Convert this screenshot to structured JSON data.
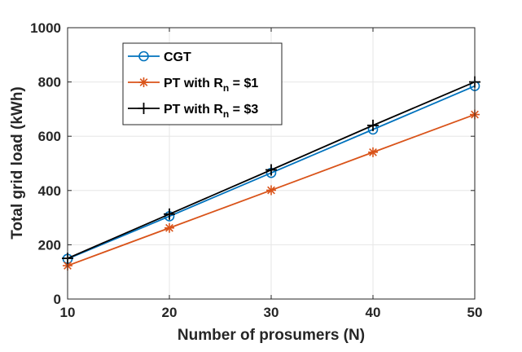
{
  "chart_data": {
    "type": "line",
    "title": "",
    "xlabel": "Number of prosumers (N)",
    "ylabel": "Total grid load (kWh)",
    "xlim": [
      10,
      50
    ],
    "ylim": [
      0,
      1000
    ],
    "xticks": [
      10,
      20,
      30,
      40,
      50
    ],
    "yticks": [
      0,
      200,
      400,
      600,
      800,
      1000
    ],
    "grid": true,
    "legend_position": "top-left",
    "x": [
      10,
      20,
      30,
      40,
      50
    ],
    "series": [
      {
        "name": "CGT",
        "values": [
          148,
          305,
          465,
          625,
          785
        ],
        "color": "#0072BD",
        "marker": "circle"
      },
      {
        "name": "PT with R_n = $1",
        "legend_main": "PT with R",
        "legend_sub": "n",
        "legend_tail": " = $1",
        "values": [
          123,
          262,
          401,
          541,
          680
        ],
        "color": "#D95319",
        "marker": "asterisk"
      },
      {
        "name": "PT with R_n = $3",
        "legend_main": "PT with R",
        "legend_sub": "n",
        "legend_tail": " = $3",
        "values": [
          150,
          313,
          476,
          640,
          800
        ],
        "color": "#000000",
        "marker": "plus"
      }
    ]
  }
}
